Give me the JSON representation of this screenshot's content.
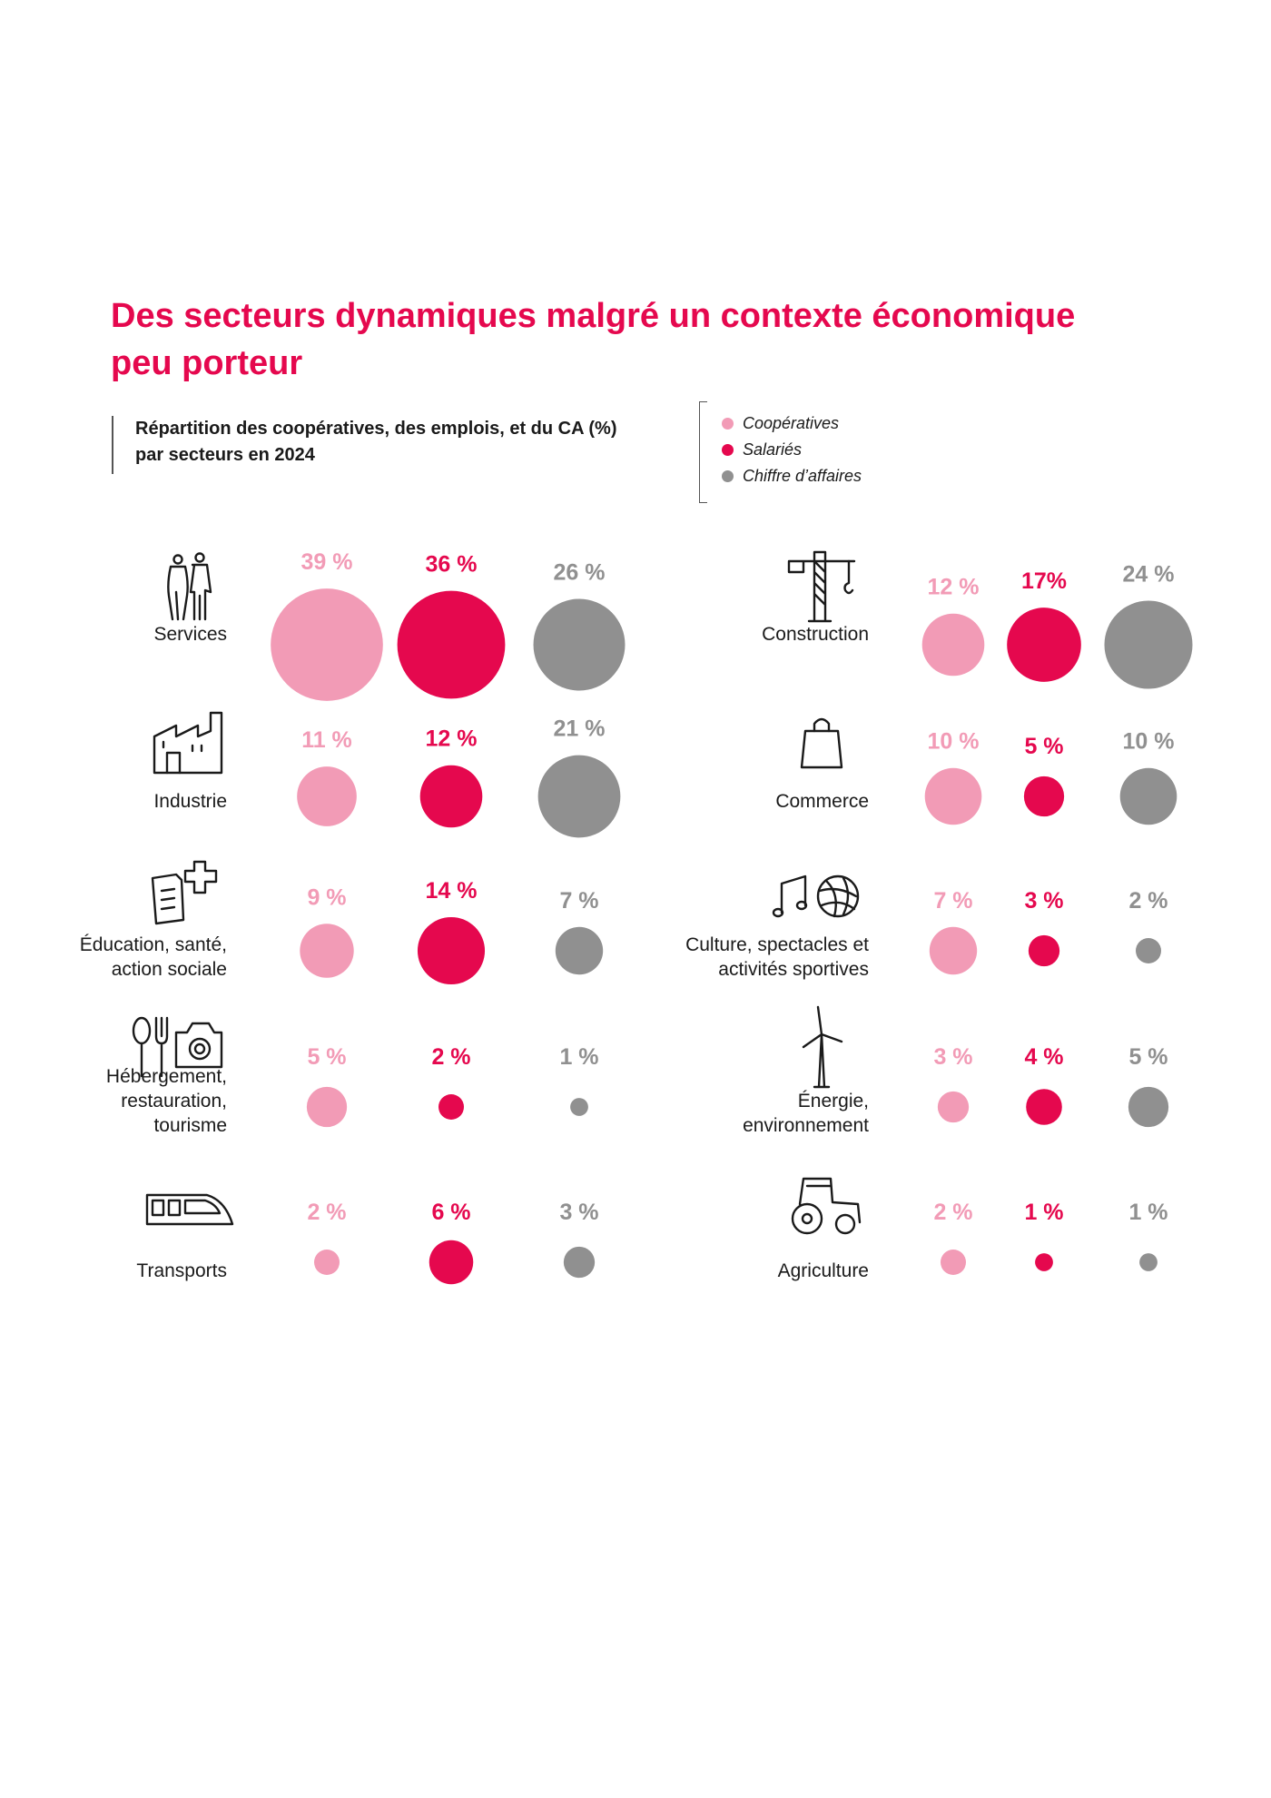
{
  "title": "Des secteurs dynamiques malgré un contexte économique peu porteur",
  "subtitle_line1": "Répartition des coopératives, des emplois, et du CA (%)",
  "subtitle_line2": "par secteurs en 2024",
  "colors": {
    "cooperatives": "#f29bb6",
    "salaries": "#e5084e",
    "ca": "#909090",
    "title": "#e5084e"
  },
  "legend": [
    {
      "label": "Coopératives",
      "color": "#f29bb6"
    },
    {
      "label": "Salariés",
      "color": "#e5084e"
    },
    {
      "label": "Chiffre d’affaires",
      "color": "#909090"
    }
  ],
  "chart_data": {
    "type": "bubble",
    "title": "Des secteurs dynamiques malgré un contexte économique peu porteur",
    "subtitle": "Répartition des coopératives, des emplois, et du CA (%) par secteurs en 2024",
    "series_names": [
      "Coopératives",
      "Salariés",
      "Chiffre d’affaires"
    ],
    "sectors": [
      {
        "name": "Services",
        "label_lines": [
          "Services"
        ],
        "icon": "people-icon",
        "column": "left",
        "values": [
          39,
          36,
          26
        ],
        "labels": [
          "39 %",
          "36 %",
          "26 %"
        ]
      },
      {
        "name": "Industrie",
        "label_lines": [
          "Industrie"
        ],
        "icon": "factory-icon",
        "column": "left",
        "values": [
          11,
          12,
          21
        ],
        "labels": [
          "11 %",
          "12 %",
          "21 %"
        ]
      },
      {
        "name": "Éducation, santé, action sociale",
        "label_lines": [
          "Éducation, santé,",
          "action sociale"
        ],
        "icon": "document-cross-icon",
        "column": "left",
        "values": [
          9,
          14,
          7
        ],
        "labels": [
          "9 %",
          "14 %",
          "7 %"
        ]
      },
      {
        "name": "Hébergement, restauration, tourisme",
        "label_lines": [
          "Hébergement,",
          "restauration,",
          "tourisme"
        ],
        "icon": "cutlery-camera-icon",
        "column": "left",
        "values": [
          5,
          2,
          1
        ],
        "labels": [
          "5 %",
          "2 %",
          "1 %"
        ]
      },
      {
        "name": "Transports",
        "label_lines": [
          "Transports"
        ],
        "icon": "train-icon",
        "column": "left",
        "values": [
          2,
          6,
          3
        ],
        "labels": [
          "2 %",
          "6 %",
          "3 %"
        ]
      },
      {
        "name": "Construction",
        "label_lines": [
          "Construction"
        ],
        "icon": "crane-icon",
        "column": "right",
        "values": [
          12,
          17,
          24
        ],
        "labels": [
          "12 %",
          "17%",
          "24 %"
        ]
      },
      {
        "name": "Commerce",
        "label_lines": [
          "Commerce"
        ],
        "icon": "shopping-bag-icon",
        "column": "right",
        "values": [
          10,
          5,
          10
        ],
        "labels": [
          "10 %",
          "5 %",
          "10 %"
        ]
      },
      {
        "name": "Culture, spectacles et activités sportives",
        "label_lines": [
          "Culture, spectacles et",
          "activités sportives"
        ],
        "icon": "music-ball-icon",
        "column": "right",
        "values": [
          7,
          3,
          2
        ],
        "labels": [
          "7 %",
          "3 %",
          "2 %"
        ]
      },
      {
        "name": "Énergie, environnement",
        "label_lines": [
          "Énergie,",
          "environnement"
        ],
        "icon": "wind-turbine-icon",
        "column": "right",
        "values": [
          3,
          4,
          5
        ],
        "labels": [
          "3 %",
          "4 %",
          "5 %"
        ]
      },
      {
        "name": "Agriculture",
        "label_lines": [
          "Agriculture"
        ],
        "icon": "tractor-icon",
        "column": "right",
        "values": [
          2,
          1,
          1
        ],
        "labels": [
          "2 %",
          "1 %",
          "1 %"
        ]
      }
    ]
  }
}
